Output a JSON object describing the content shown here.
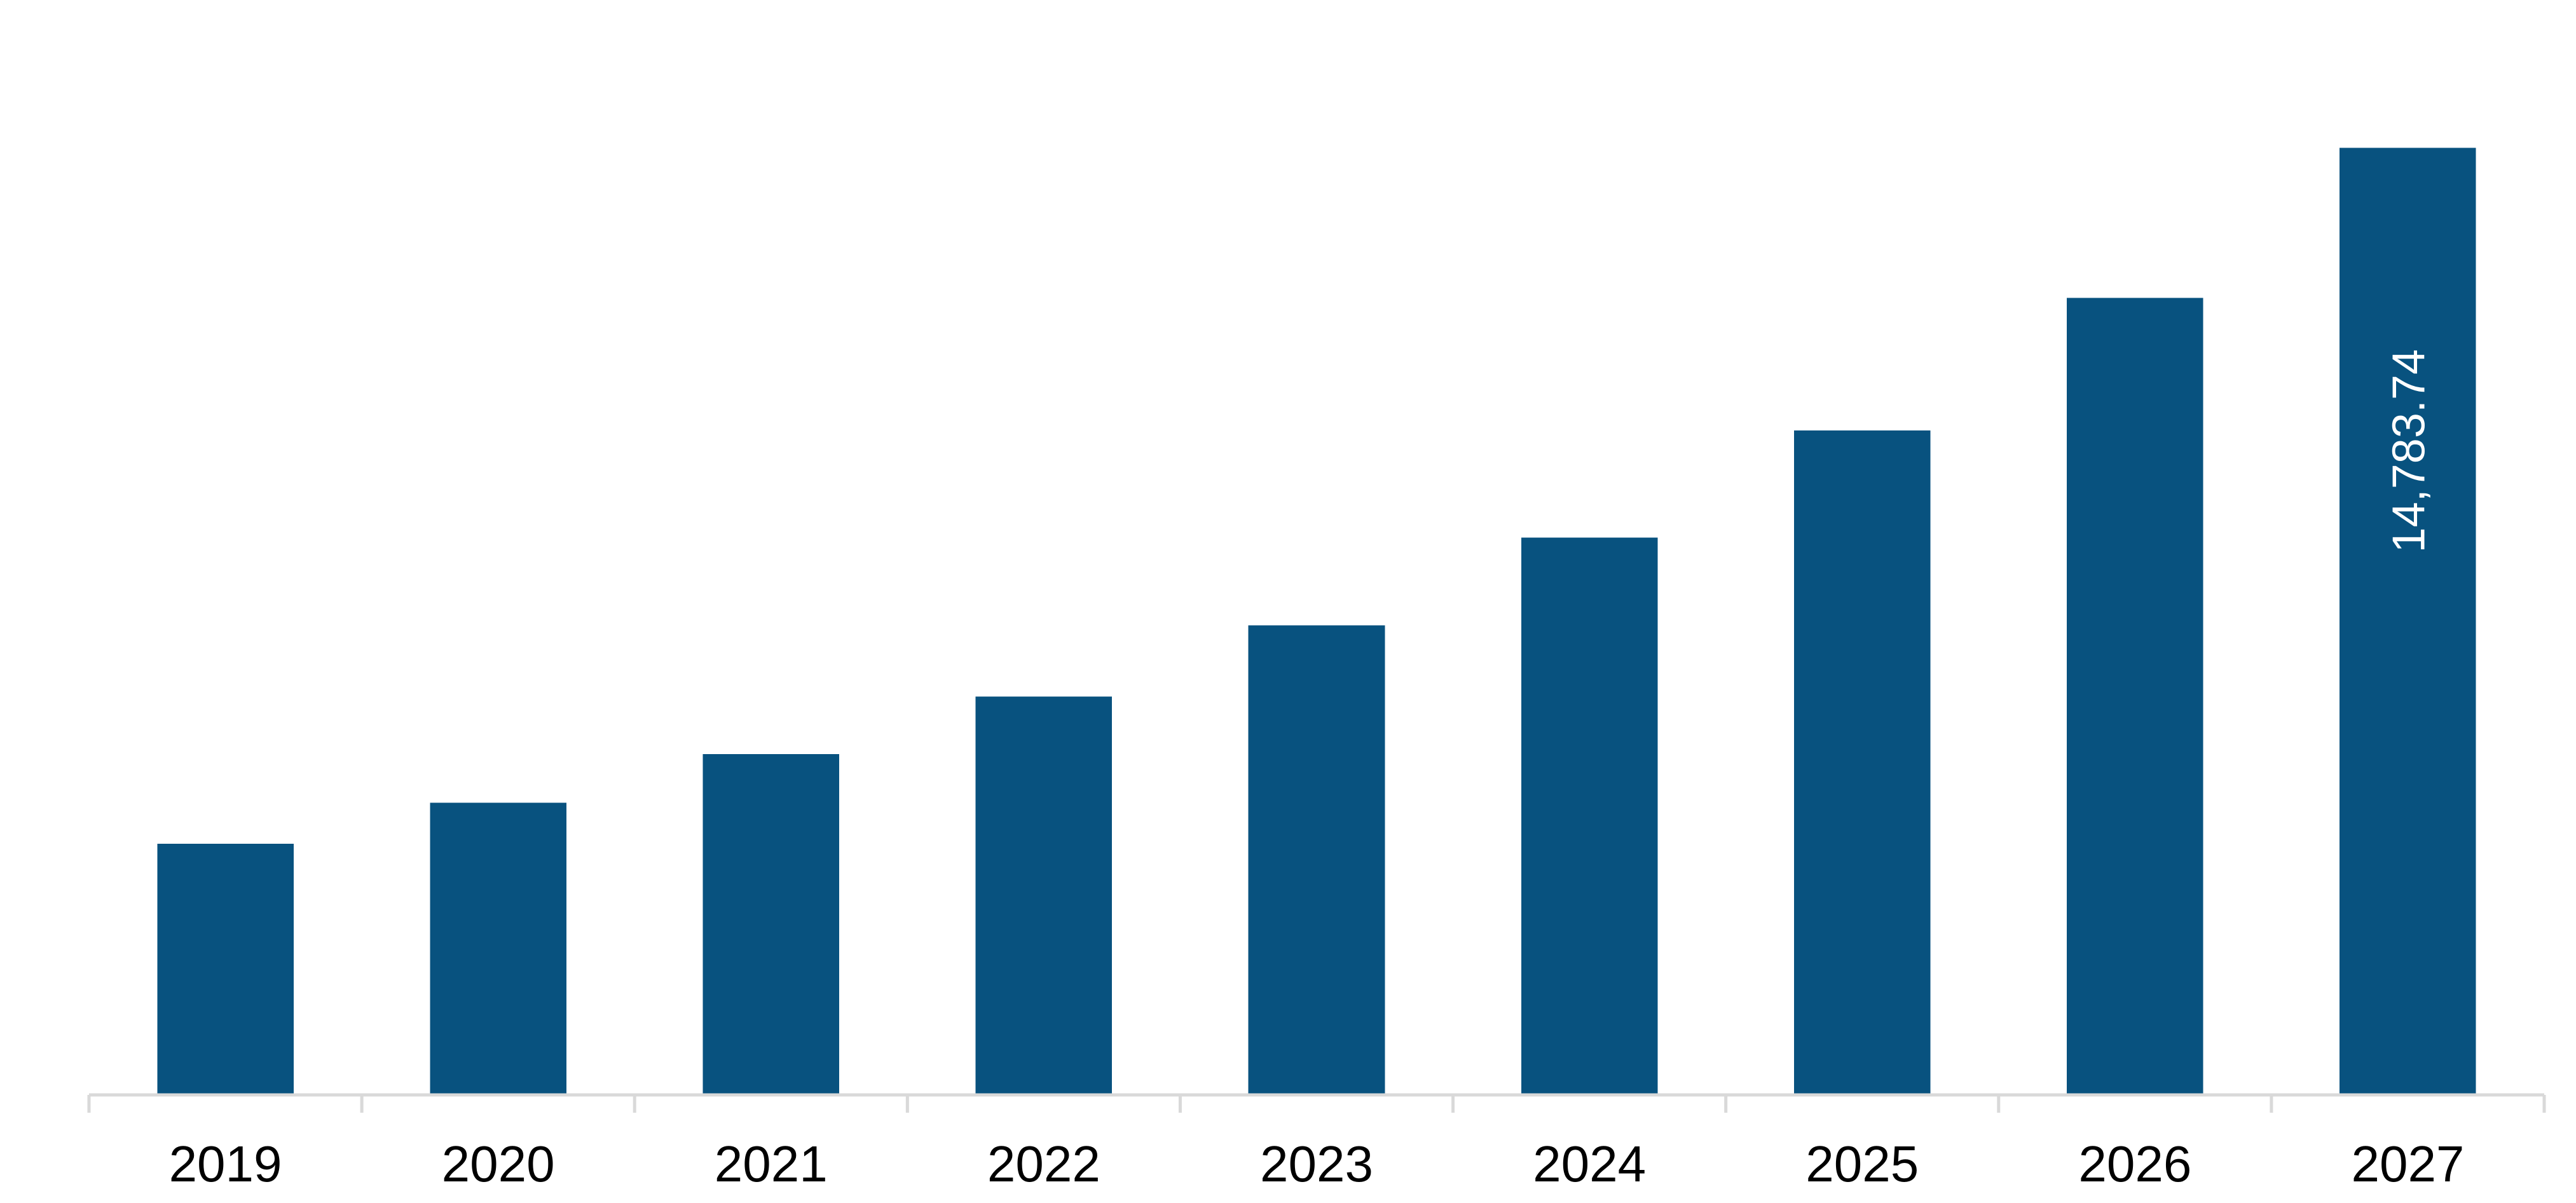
{
  "chart_data": {
    "type": "bar",
    "title": "",
    "xlabel": "",
    "ylabel": "",
    "categories": [
      "2019",
      "2020",
      "2021",
      "2022",
      "2023",
      "2024",
      "2025",
      "2026",
      "2027"
    ],
    "values": [
      3920,
      4560,
      5320,
      6220,
      7330,
      8700,
      10370,
      12440,
      14783.74
    ],
    "data_labels": [
      "",
      "",
      "",
      "",
      "",
      "",
      "",
      "",
      "14,783.74"
    ],
    "ylim": [
      0,
      16000
    ],
    "grid": false,
    "legend": "none",
    "colors": {
      "bar": "#08527f",
      "axis": "#d9d9d9",
      "tick_text": "#000000",
      "data_label_text": "#ffffff"
    }
  }
}
